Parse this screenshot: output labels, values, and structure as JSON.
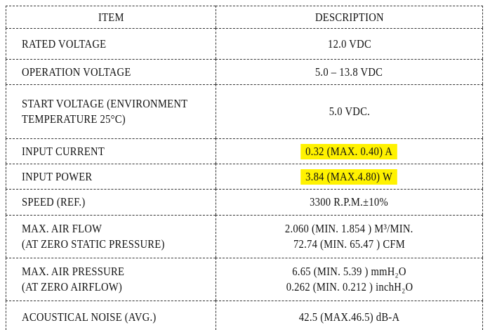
{
  "table": {
    "header": [
      "ITEM",
      "DESCRIPTION"
    ],
    "rows": [
      {
        "item": [
          "RATED VOLTAGE"
        ],
        "description": [
          "12.0 VDC"
        ]
      },
      {
        "item": [
          "OPERATION VOLTAGE"
        ],
        "description": [
          "5.0 – 13.8 VDC"
        ]
      },
      {
        "item": [
          "START VOLTAGE (ENVIRONMENT",
          "TEMPERATURE 25°C)"
        ],
        "description": [
          "5.0 VDC."
        ]
      },
      {
        "item": [
          "INPUT CURRENT"
        ],
        "description": [
          "0.32 (MAX. 0.40) A"
        ],
        "highlighted": true
      },
      {
        "item": [
          "INPUT POWER"
        ],
        "description": [
          "3.84 (MAX.4.80) W"
        ],
        "highlighted": true
      },
      {
        "item": [
          "SPEED (REF.)"
        ],
        "description": [
          "3300 R.P.M.±10%"
        ]
      },
      {
        "item": [
          "MAX. AIR FLOW",
          "(AT ZERO STATIC PRESSURE)"
        ],
        "description": [
          "2.060 (MIN. 1.854 ) M³/MIN.",
          "72.74 (MIN. 65.47 ) CFM"
        ]
      },
      {
        "item": [
          "MAX. AIR PRESSURE",
          "(AT ZERO AIRFLOW)"
        ],
        "description": [
          "6.65 (MIN. 5.39 ) mmH₂O",
          "0.262 (MIN. 0.212 ) inchH₂O"
        ]
      },
      {
        "item": [
          "ACOUSTICAL NOISE (AVG.)"
        ],
        "description": [
          "42.5 (MAX.46.5) dB-A"
        ]
      }
    ]
  }
}
